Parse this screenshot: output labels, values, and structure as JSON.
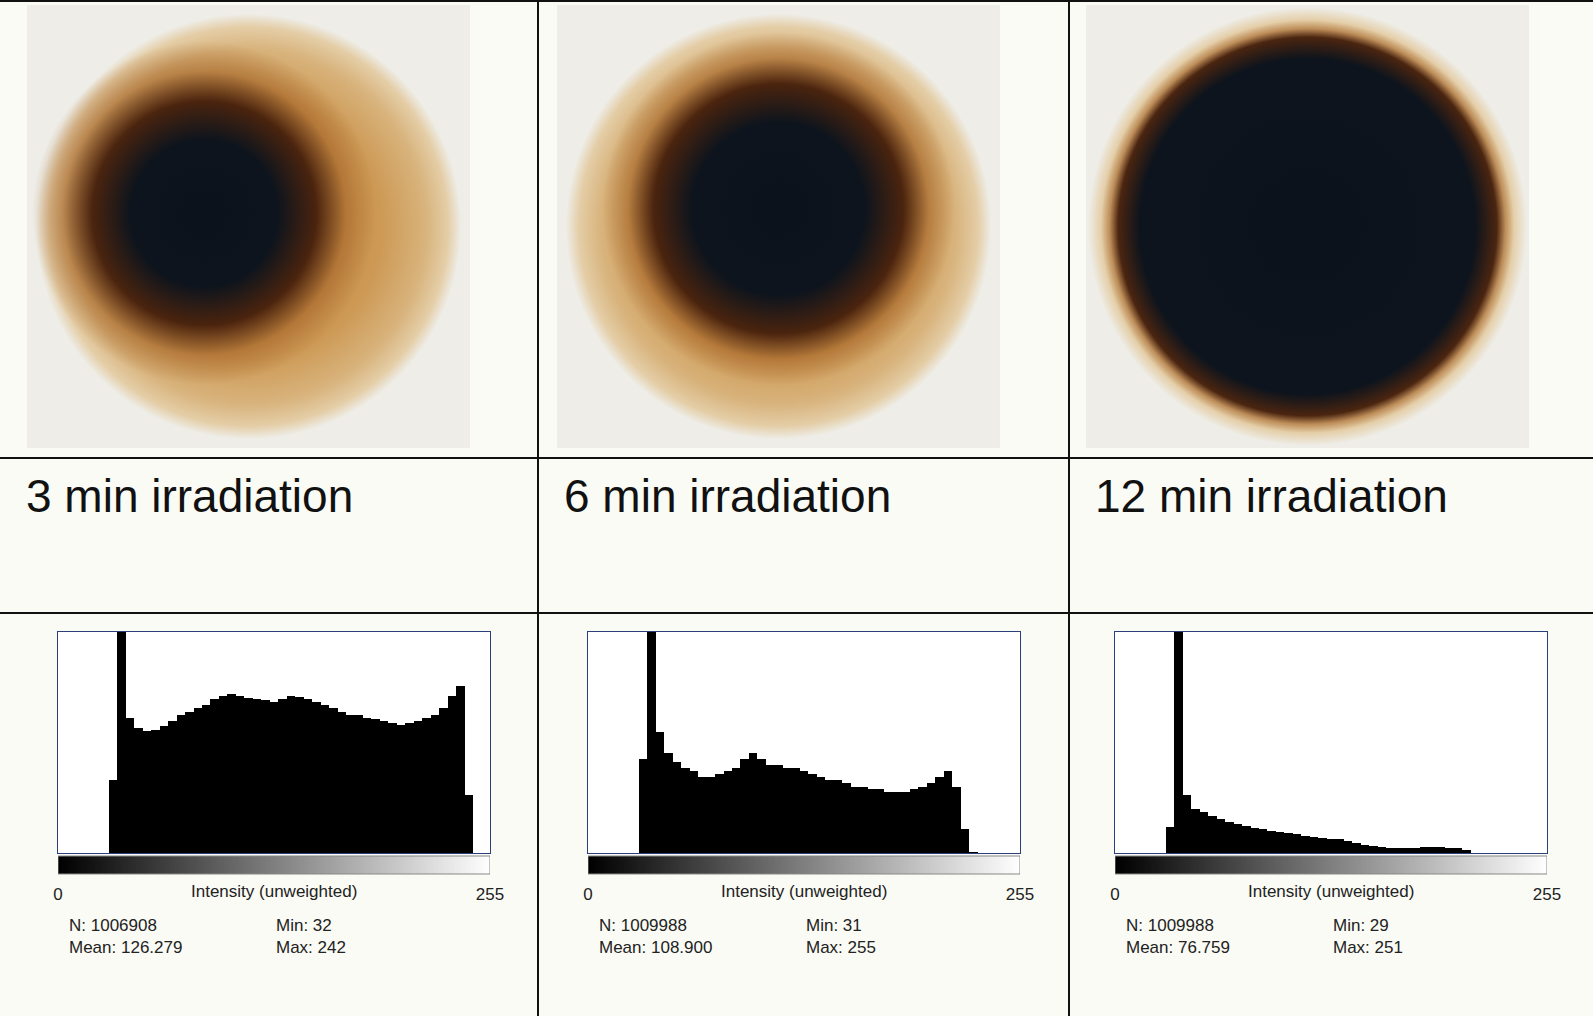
{
  "captions": [
    "3 min irradiation",
    "6 min irradiation",
    "12 min irradiation"
  ],
  "chart_data": [
    {
      "type": "histogram",
      "x_label": "Intensity (unweighted)",
      "color": "#000000",
      "grid": false,
      "tick_labels": "x",
      "xlim": [
        0,
        255
      ],
      "xticks": [
        0,
        255
      ],
      "ylim": [
        0,
        34400
      ],
      "bins": [
        0,
        5,
        10,
        15,
        20,
        25,
        30,
        35,
        40,
        45,
        50,
        55,
        60,
        65,
        70,
        75,
        80,
        85,
        90,
        95,
        100,
        105,
        110,
        115,
        120,
        125,
        130,
        135,
        140,
        145,
        150,
        155,
        160,
        165,
        170,
        175,
        180,
        185,
        190,
        195,
        200,
        205,
        210,
        215,
        220,
        225,
        230,
        235,
        240,
        245,
        250,
        255
      ],
      "values": [
        0,
        0,
        0,
        0,
        0,
        0,
        11300,
        34400,
        21000,
        19500,
        19000,
        19200,
        19800,
        20500,
        21500,
        22000,
        22500,
        23000,
        24000,
        24500,
        24800,
        24500,
        24200,
        24000,
        23800,
        23500,
        24000,
        24500,
        24300,
        24000,
        23500,
        23000,
        22500,
        22000,
        21500,
        21500,
        21000,
        20800,
        20500,
        20200,
        20000,
        20300,
        20600,
        21000,
        21500,
        22500,
        24500,
        26000,
        9000,
        0,
        0
      ],
      "stats": [
        [
          "N: 1006908",
          "Min: 32"
        ],
        [
          "Mean: 126.279",
          "Max: 242"
        ]
      ]
    },
    {
      "type": "histogram",
      "x_label": "Intensity (unweighted)",
      "color": "#000000",
      "grid": false,
      "tick_labels": "x",
      "xlim": [
        0,
        255
      ],
      "xticks": [
        0,
        255
      ],
      "ylim": [
        0,
        70800
      ],
      "bins": [
        0,
        5,
        10,
        15,
        20,
        25,
        30,
        35,
        40,
        45,
        50,
        55,
        60,
        65,
        70,
        75,
        80,
        85,
        90,
        95,
        100,
        105,
        110,
        115,
        120,
        125,
        130,
        135,
        140,
        145,
        150,
        155,
        160,
        165,
        170,
        175,
        180,
        185,
        190,
        195,
        200,
        205,
        210,
        215,
        220,
        225,
        230,
        235,
        240,
        245,
        250,
        255
      ],
      "values": [
        0,
        0,
        0,
        0,
        0,
        0,
        30000,
        70800,
        38800,
        32000,
        29000,
        27200,
        26200,
        24300,
        24300,
        25200,
        26200,
        27200,
        30100,
        32000,
        30100,
        28100,
        28100,
        27200,
        27200,
        26200,
        25200,
        24300,
        23300,
        23300,
        22300,
        21300,
        21300,
        20400,
        20400,
        19400,
        19400,
        19400,
        20400,
        21300,
        22300,
        24300,
        26200,
        21300,
        7800,
        200,
        100,
        80,
        60,
        40,
        30
      ],
      "stats": [
        [
          "N: 1009988",
          "Min: 31"
        ],
        [
          "Mean: 108.900",
          "Max: 255"
        ]
      ]
    },
    {
      "type": "histogram",
      "x_label": "Intensity (unweighted)",
      "color": "#000000",
      "grid": false,
      "tick_labels": "x",
      "xlim": [
        0,
        255
      ],
      "xticks": [
        0,
        255
      ],
      "ylim": [
        0,
        273000
      ],
      "bins": [
        0,
        5,
        10,
        15,
        20,
        25,
        30,
        35,
        40,
        45,
        50,
        55,
        60,
        65,
        70,
        75,
        80,
        85,
        90,
        95,
        100,
        105,
        110,
        115,
        120,
        125,
        130,
        135,
        140,
        145,
        150,
        155,
        160,
        165,
        170,
        175,
        180,
        185,
        190,
        195,
        200,
        205,
        210,
        215,
        220,
        225,
        230,
        235,
        240,
        245,
        250,
        255
      ],
      "values": [
        0,
        0,
        0,
        0,
        0,
        500,
        32000,
        273000,
        71400,
        54600,
        50400,
        46200,
        42000,
        37800,
        35700,
        33600,
        31500,
        29400,
        27300,
        26000,
        25200,
        23100,
        21000,
        20200,
        18900,
        17600,
        16800,
        14700,
        12600,
        10500,
        8400,
        7600,
        6700,
        6300,
        6300,
        6700,
        7100,
        7100,
        7100,
        6700,
        6300,
        3400,
        150,
        100,
        80,
        60,
        50,
        40,
        30,
        20,
        10
      ],
      "stats": [
        [
          "N: 1009988",
          "Min: 29"
        ],
        [
          "Mean: 76.759",
          "Max: 251"
        ]
      ]
    }
  ]
}
